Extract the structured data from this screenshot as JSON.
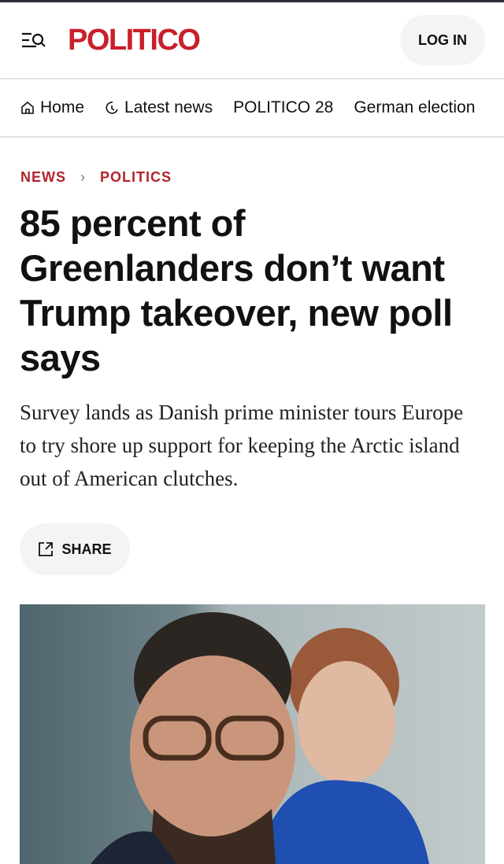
{
  "header": {
    "logo": "POLITICO",
    "login_label": "LOG IN"
  },
  "nav": {
    "items": [
      {
        "label": "Home",
        "icon": "home-icon"
      },
      {
        "label": "Latest news",
        "icon": "clock-icon"
      },
      {
        "label": "POLITICO 28"
      },
      {
        "label": "German election"
      }
    ]
  },
  "breadcrumb": {
    "section": "NEWS",
    "subsection": "POLITICS"
  },
  "article": {
    "headline": "85 percent of Greenlanders don’t want Trump takeover, new poll says",
    "dek": "Survey lands as Danish prime minister tours Europe to try shore up support for keeping the Arctic island out of American clutches.",
    "share_label": "SHARE"
  },
  "colors": {
    "brand": "#c8202b"
  }
}
